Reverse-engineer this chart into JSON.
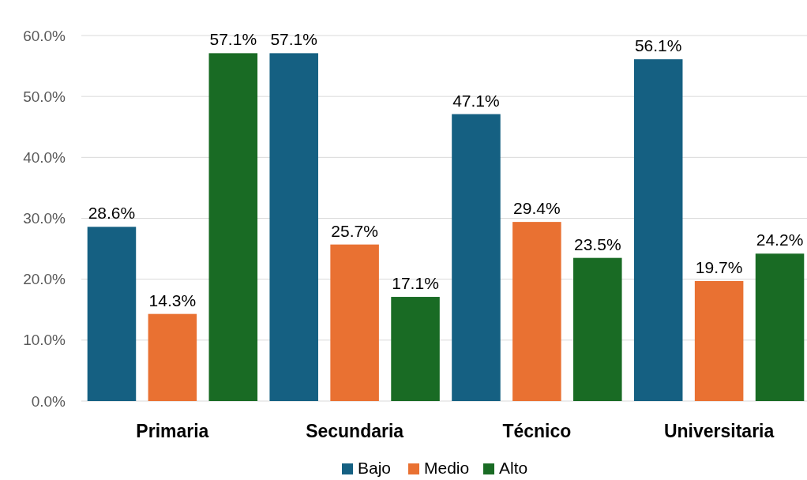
{
  "chart_data": {
    "type": "bar",
    "categories": [
      "Primaria",
      "Secundaria",
      "Técnico",
      "Universitaria"
    ],
    "series": [
      {
        "name": "Bajo",
        "color": "#156082",
        "values": [
          28.6,
          57.1,
          47.1,
          56.1
        ],
        "value_labels": [
          "28.6%",
          "57.1%",
          "47.1%",
          "56.1%"
        ]
      },
      {
        "name": "Medio",
        "color": "#e97132",
        "values": [
          14.3,
          25.7,
          29.4,
          19.7
        ],
        "value_labels": [
          "14.3%",
          "25.7%",
          "29.4%",
          "19.7%"
        ]
      },
      {
        "name": "Alto",
        "color": "#196b24",
        "values": [
          57.1,
          17.1,
          23.5,
          24.2
        ],
        "value_labels": [
          "57.1%",
          "17.1%",
          "23.5%",
          "24.2%"
        ]
      }
    ],
    "ylim": [
      0,
      60
    ],
    "yticks": [
      {
        "value": 0,
        "label": "0.0%"
      },
      {
        "value": 10,
        "label": "10.0%"
      },
      {
        "value": 20,
        "label": "20.0%"
      },
      {
        "value": 30,
        "label": "30.0%"
      },
      {
        "value": 40,
        "label": "40.0%"
      },
      {
        "value": 50,
        "label": "50.0%"
      },
      {
        "value": 60,
        "label": "60.0%"
      }
    ],
    "grid": "y",
    "legend": "bottom"
  }
}
